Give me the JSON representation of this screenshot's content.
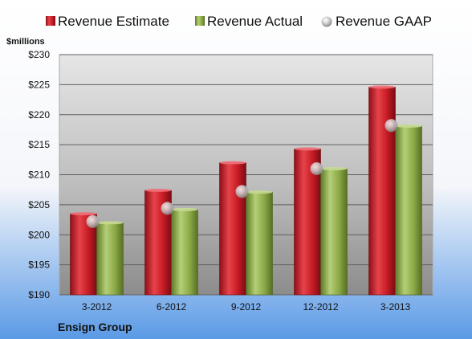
{
  "chart_data": {
    "type": "bar",
    "categories": [
      "3-2012",
      "6-2012",
      "9-2012",
      "12-2012",
      "3-2013"
    ],
    "series": [
      {
        "name": "Revenue Estimate",
        "values": [
          203.5,
          207.4,
          212.0,
          214.3,
          224.6
        ],
        "color": "#cc1f2a"
      },
      {
        "name": "Revenue Actual",
        "values": [
          202.0,
          204.2,
          207.1,
          211.0,
          218.1
        ],
        "color": "#8fae4a"
      }
    ],
    "markers": {
      "name": "Revenue GAAP",
      "values": [
        202.2,
        204.4,
        207.2,
        211.0,
        218.2
      ],
      "color": "#c8c8c8"
    },
    "ylabel": "$millions",
    "ylim": [
      190,
      230
    ],
    "yticks": [
      "$190",
      "$195",
      "$200",
      "$205",
      "$210",
      "$215",
      "$220",
      "$225",
      "$230"
    ],
    "ytick_values": [
      190,
      195,
      200,
      205,
      210,
      215,
      220,
      225,
      230
    ],
    "grid": true,
    "legend": "top",
    "company": "Ensign Group"
  }
}
